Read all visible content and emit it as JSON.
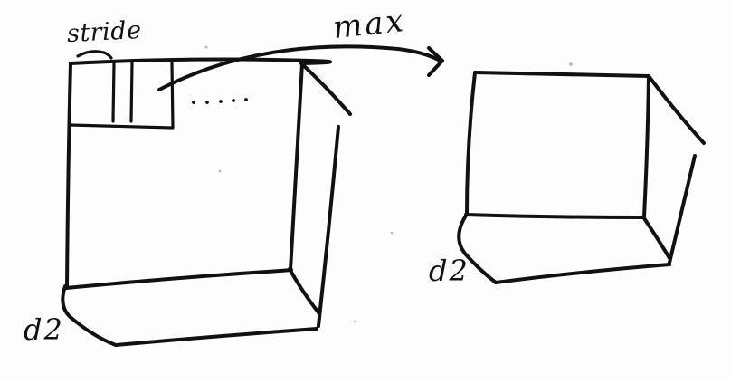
{
  "diagram": {
    "description_labels": {
      "stride": "stride",
      "operation": "max",
      "depth_left": "d2",
      "depth_right": "d2"
    },
    "ink_color": "#111111",
    "paper_color": "#fdfdfd"
  }
}
